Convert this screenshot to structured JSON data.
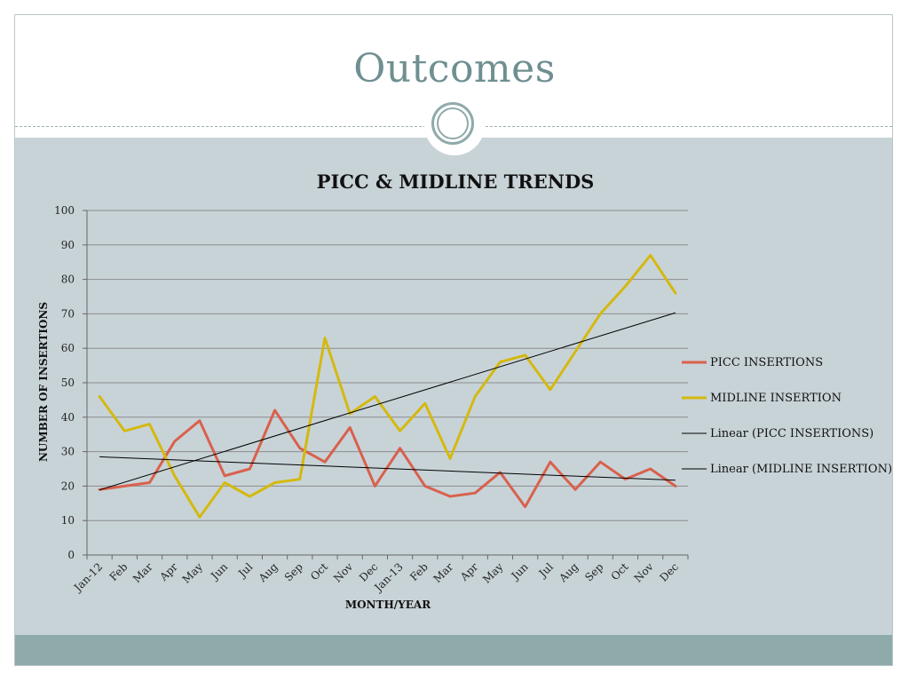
{
  "slide": {
    "title": "Outcomes"
  },
  "colors": {
    "title": "#6f8f91",
    "content_bg": "#c8d3d8",
    "footer_band": "#8faaaa",
    "picc": "#d9614c",
    "midline": "#d4b90f",
    "trend": "#000000",
    "grid": "#8c8c8c"
  },
  "chart_data": {
    "type": "line",
    "title": "PICC & MIDLINE TRENDS",
    "xlabel": "MONTH/YEAR",
    "ylabel": "NUMBER OF INSERTIONS",
    "ylim": [
      0,
      100
    ],
    "yticks": [
      0,
      10,
      20,
      30,
      40,
      50,
      60,
      70,
      80,
      90,
      100
    ],
    "grid": true,
    "legend_position": "right",
    "categories": [
      "Jan-12",
      "Feb",
      "Mar",
      "Apr",
      "May",
      "Jun",
      "Jul",
      "Aug",
      "Sep",
      "Oct",
      "Nov",
      "Dec",
      "Jan-13",
      "Feb",
      "Mar",
      "Apr",
      "May",
      "Jun",
      "Jul",
      "Aug",
      "Sep",
      "Oct",
      "Nov",
      "Dec"
    ],
    "series": [
      {
        "name": "PICC INSERTIONS",
        "color": "#d9614c",
        "values": [
          19,
          20,
          21,
          33,
          39,
          23,
          25,
          42,
          31,
          27,
          37,
          20,
          31,
          20,
          17,
          18,
          24,
          14,
          27,
          19,
          27,
          22,
          25,
          20
        ]
      },
      {
        "name": "MIDLINE INSERTION",
        "color": "#d4b90f",
        "values": [
          46,
          36,
          38,
          23,
          11,
          21,
          17,
          21,
          22,
          63,
          41,
          46,
          36,
          44,
          28,
          46,
          56,
          58,
          48,
          59,
          70,
          78,
          87,
          76
        ]
      }
    ],
    "trendlines": [
      {
        "name": "Linear (PICC INSERTIONS)",
        "color": "#000000",
        "start": 28.5,
        "end": 21.7
      },
      {
        "name": "Linear (MIDLINE INSERTION)",
        "color": "#000000",
        "start": 18.9,
        "end": 70.3
      }
    ]
  }
}
